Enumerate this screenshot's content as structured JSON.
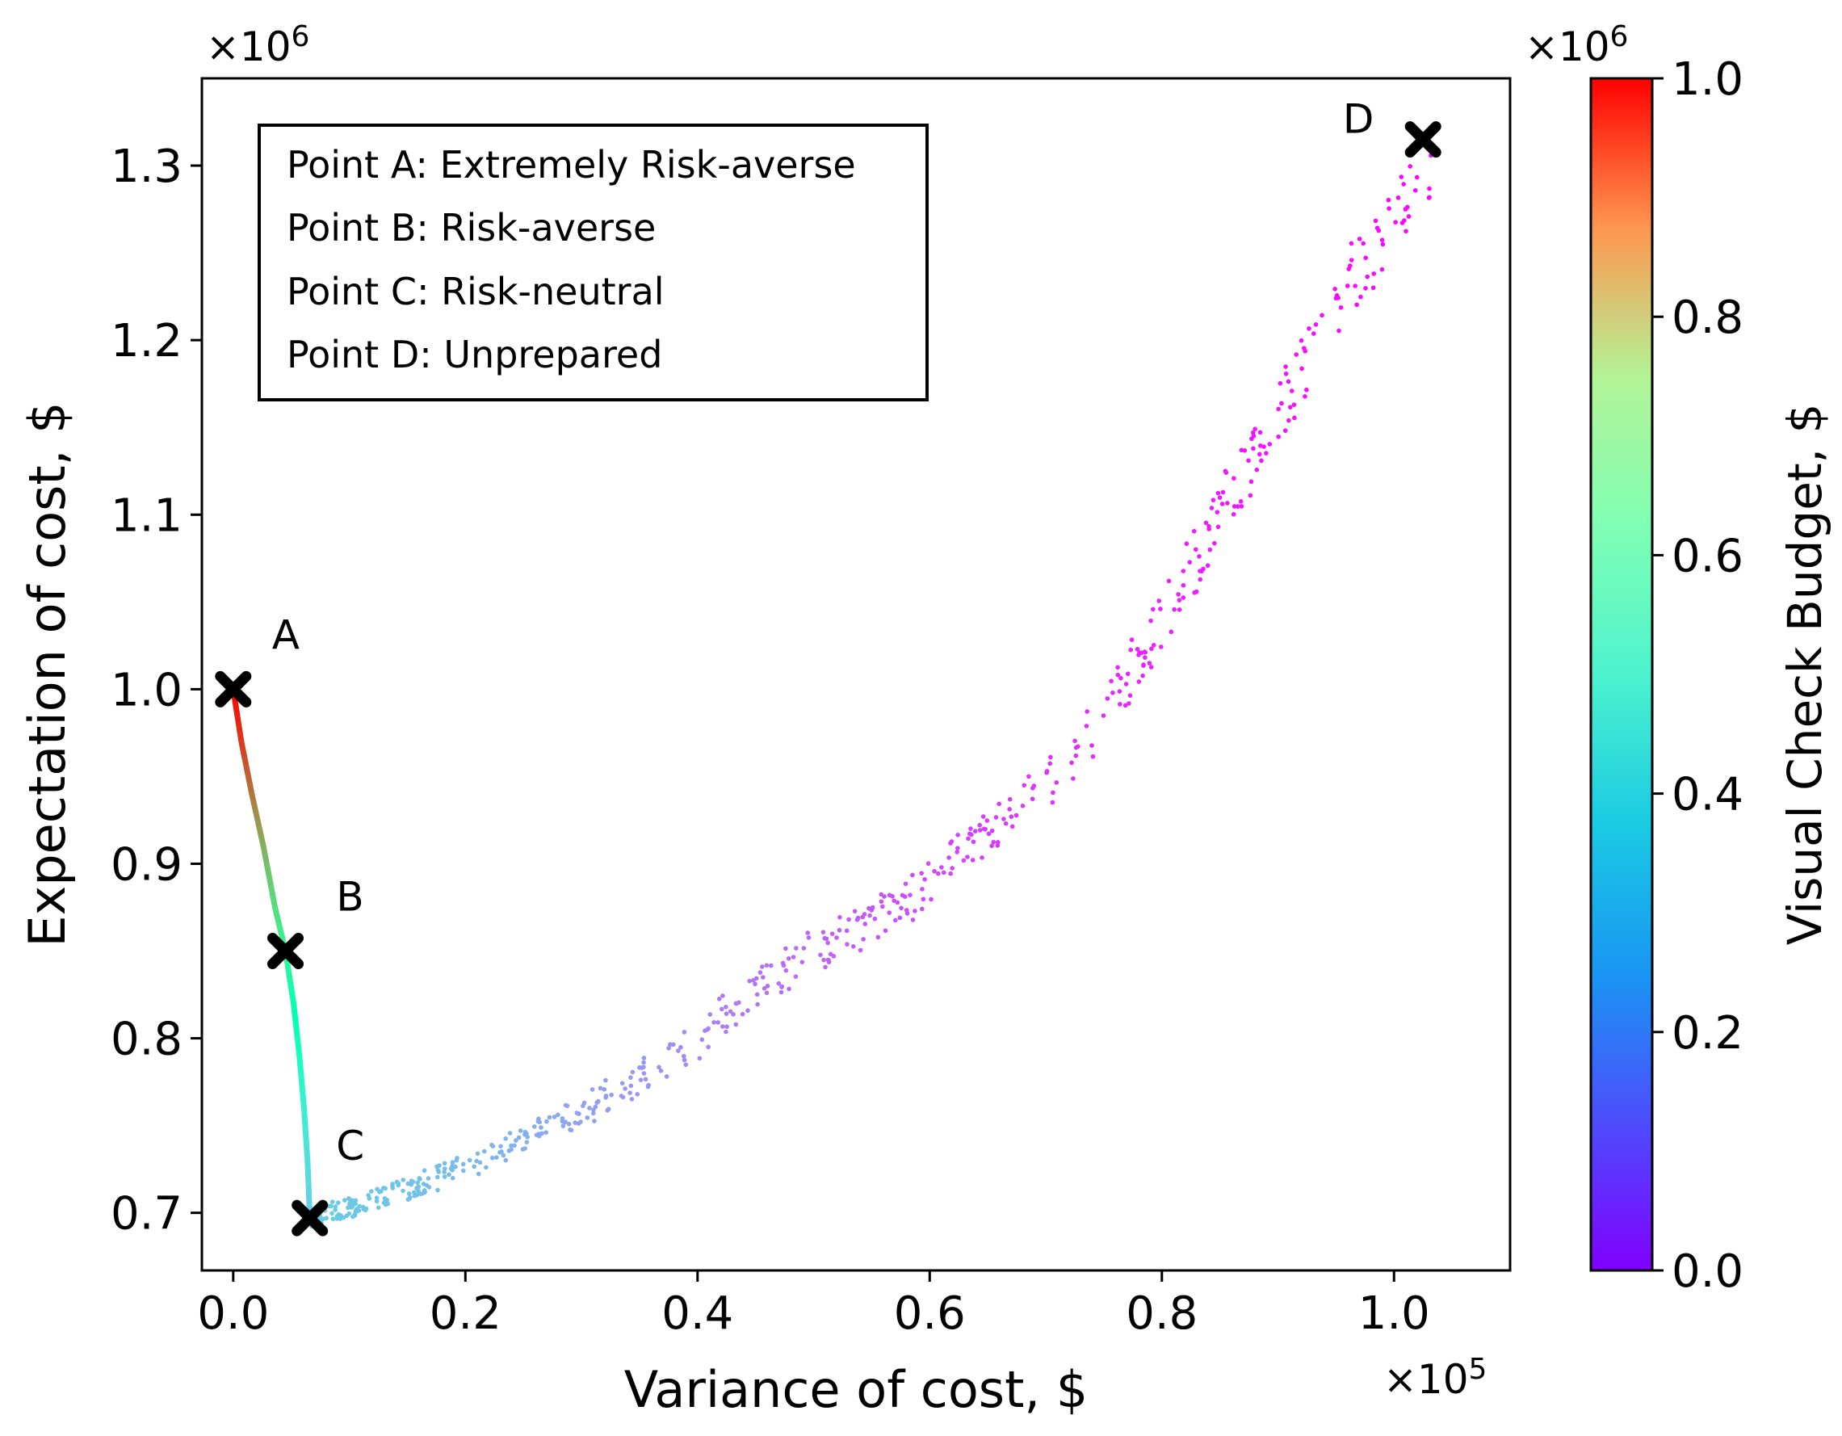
{
  "chart_data": {
    "type": "scatter",
    "xlabel": "Variance of cost, $",
    "ylabel": "Expectation of cost, $",
    "x_multiplier": "×10",
    "x_multiplier_exp": "5",
    "y_multiplier": "×10",
    "y_multiplier_exp": "6",
    "xlim": [
      -0.027,
      1.1
    ],
    "ylim": [
      0.667,
      1.35
    ],
    "xticks": [
      0.0,
      0.2,
      0.4,
      0.6,
      0.8,
      1.0
    ],
    "xtick_labels": [
      "0.0",
      "0.2",
      "0.4",
      "0.6",
      "0.8",
      "1.0"
    ],
    "yticks": [
      0.7,
      0.8,
      0.9,
      1.0,
      1.1,
      1.2,
      1.3
    ],
    "ytick_labels": [
      "0.7",
      "0.8",
      "0.9",
      "1.0",
      "1.1",
      "1.2",
      "1.3"
    ],
    "legend": {
      "position": "top-left",
      "entries": [
        "Point A: Extremely Risk-averse",
        "Point B: Risk-averse",
        "Point C: Risk-neutral",
        "Point D: Unprepared"
      ]
    },
    "colorbar": {
      "label": "Visual Check Budget, $",
      "multiplier": "×10",
      "multiplier_exp": "6",
      "range": [
        0.0,
        1.0
      ],
      "ticks": [
        0.0,
        0.2,
        0.4,
        0.6,
        0.8,
        1.0
      ],
      "tick_labels": [
        "0.0",
        "0.2",
        "0.4",
        "0.6",
        "0.8",
        "1.0"
      ],
      "colormap": "rainbow"
    },
    "marked_points": [
      {
        "label": "A",
        "x": 0.0,
        "y": 1.0,
        "budget": 1.0
      },
      {
        "label": "B",
        "x": 0.045,
        "y": 0.85,
        "budget": 0.6
      },
      {
        "label": "C",
        "x": 0.066,
        "y": 0.697,
        "budget": 0.3
      },
      {
        "label": "D",
        "x": 1.025,
        "y": 1.315,
        "budget": 0.0
      }
    ],
    "frontier_curve": [
      {
        "x": 0.0,
        "y": 1.0,
        "budget": 1.0
      },
      {
        "x": 0.007,
        "y": 0.97,
        "budget": 0.93
      },
      {
        "x": 0.016,
        "y": 0.94,
        "budget": 0.85
      },
      {
        "x": 0.026,
        "y": 0.91,
        "budget": 0.76
      },
      {
        "x": 0.036,
        "y": 0.875,
        "budget": 0.67
      },
      {
        "x": 0.045,
        "y": 0.85,
        "budget": 0.6
      },
      {
        "x": 0.052,
        "y": 0.82,
        "budget": 0.52
      },
      {
        "x": 0.057,
        "y": 0.79,
        "budget": 0.45
      },
      {
        "x": 0.061,
        "y": 0.76,
        "budget": 0.39
      },
      {
        "x": 0.064,
        "y": 0.73,
        "budget": 0.34
      },
      {
        "x": 0.066,
        "y": 0.697,
        "budget": 0.3
      }
    ],
    "scatter_trend": [
      {
        "x": 0.066,
        "y": 0.697,
        "budget": 0.3
      },
      {
        "x": 0.1,
        "y": 0.703,
        "budget": 0.29
      },
      {
        "x": 0.15,
        "y": 0.714,
        "budget": 0.275
      },
      {
        "x": 0.2,
        "y": 0.727,
        "budget": 0.26
      },
      {
        "x": 0.25,
        "y": 0.742,
        "budget": 0.24
      },
      {
        "x": 0.3,
        "y": 0.758,
        "budget": 0.22
      },
      {
        "x": 0.35,
        "y": 0.777,
        "budget": 0.2
      },
      {
        "x": 0.4,
        "y": 0.8,
        "budget": 0.175
      },
      {
        "x": 0.45,
        "y": 0.828,
        "budget": 0.15
      },
      {
        "x": 0.5,
        "y": 0.85,
        "budget": 0.13
      },
      {
        "x": 0.55,
        "y": 0.865,
        "budget": 0.11
      },
      {
        "x": 0.6,
        "y": 0.89,
        "budget": 0.09
      },
      {
        "x": 0.65,
        "y": 0.915,
        "budget": 0.075
      },
      {
        "x": 0.7,
        "y": 0.945,
        "budget": 0.06
      },
      {
        "x": 0.75,
        "y": 0.985,
        "budget": 0.05
      },
      {
        "x": 0.8,
        "y": 1.04,
        "budget": 0.04
      },
      {
        "x": 0.85,
        "y": 1.1,
        "budget": 0.03
      },
      {
        "x": 0.9,
        "y": 1.16,
        "budget": 0.02
      },
      {
        "x": 0.95,
        "y": 1.22,
        "budget": 0.012
      },
      {
        "x": 1.0,
        "y": 1.27,
        "budget": 0.006
      },
      {
        "x": 1.04,
        "y": 1.31,
        "budget": 0.0
      }
    ]
  }
}
